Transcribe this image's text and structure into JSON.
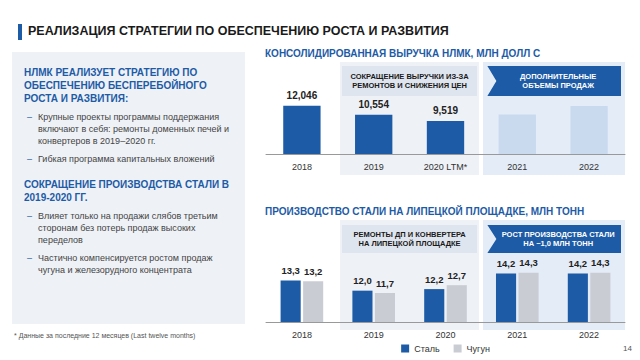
{
  "slide": {
    "title": "РЕАЛИЗАЦИЯ СТРАТЕГИИ ПО ОБЕСПЕЧЕНИЮ РОСТА И РАЗВИТИЯ",
    "left_panel": [
      {
        "heading": "НЛМК РЕАЛИЗУЕТ СТРАТЕГИЮ ПО ОБЕСПЕЧЕНИЮ БЕСПЕРЕБОЙНОГО РОСТА И РАЗВИТИЯ:",
        "bullets": [
          "Крупные проекты программы поддержания включают в себя: ремонты доменных печей и конвертеров в 2019–2020 гг.",
          "Гибкая программа капитальных вложений"
        ]
      },
      {
        "heading": "СОКРАЩЕНИЕ ПРОИЗВОДСТВА СТАЛИ В 2019-2020 ГГ.",
        "bullets": [
          "Влияет только на продажи слябов третьим сторонам без потерь продаж высоких переделов",
          "Частично компенсируется ростом продаж чугуна и железорудного концентрата"
        ]
      }
    ],
    "footnote": "* Данные за последние 12 месяцев (Last twelve months)",
    "page": "14"
  },
  "chart_data": [
    {
      "type": "bar",
      "title": "КОНСОЛИДИРОВАННАЯ ВЫРУЧКА НЛМК, МЛН ДОЛЛ С",
      "categories": [
        "2018",
        "2019",
        "2020 LTM*",
        "2021",
        "2022"
      ],
      "values": [
        12046,
        10554,
        9519,
        10600,
        12000
      ],
      "value_labels": [
        "12,046",
        "10,554",
        "9,519",
        null,
        null
      ],
      "colors": [
        "#1d5ba6",
        "#1d5ba6",
        "#1d5ba6",
        "#c9daef",
        "#c9daef"
      ],
      "ylim": [
        4000,
        18000
      ],
      "data_labels": true,
      "tick_labels": "x",
      "annotations": [
        "СОКРАЩЕНИЕ ВЫРУЧКИ ИЗ-ЗА РЕМОНТОВ И СНИЖЕНИЯ ЦЕН",
        "ДОПОЛНИТЕЛЬНЫЕ ОБЪЕМЫ ПРОДАЖ"
      ]
    },
    {
      "type": "bar",
      "title": "ПРОИЗВОДСТВО СТАЛИ НА ЛИПЕЦКОЙ ПЛОЩАДКЕ, МЛН ТОНН",
      "categories": [
        "2018",
        "2019",
        "2020",
        "2021",
        "2022"
      ],
      "series": [
        {
          "name": "Сталь",
          "color": "#1d5ba6",
          "values": [
            13.3,
            12.0,
            12.2,
            14.2,
            14.2
          ],
          "value_labels": [
            "13,3",
            "12,0",
            "12,2",
            "14,2",
            "14,2"
          ]
        },
        {
          "name": "Чугун",
          "color": "#c9ccd3",
          "values": [
            13.2,
            11.7,
            12.7,
            14.3,
            14.3
          ],
          "value_labels": [
            "13,2",
            "11,7",
            "12,7",
            "14,3",
            "14,3"
          ]
        }
      ],
      "ylim": [
        8,
        20
      ],
      "data_labels": true,
      "tick_labels": "x",
      "legend": "bottom",
      "annotations": [
        "РЕМОНТЫ ДП И КОНВЕРТЕРА НА ЛИПЕЦКОЙ ПЛОЩАДКЕ",
        "РОСТ ПРОИЗВОДСТВА СТАЛИ НА ~1,0 МЛН ТОНН"
      ]
    }
  ]
}
